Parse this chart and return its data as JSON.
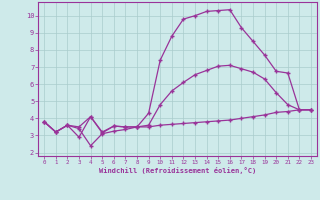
{
  "xlabel": "Windchill (Refroidissement éolien,°C)",
  "background_color": "#ceeaea",
  "grid_color": "#aacccc",
  "line_color": "#993399",
  "xlim": [
    -0.5,
    23.5
  ],
  "ylim": [
    1.8,
    10.8
  ],
  "xticks": [
    0,
    1,
    2,
    3,
    4,
    5,
    6,
    7,
    8,
    9,
    10,
    11,
    12,
    13,
    14,
    15,
    16,
    17,
    18,
    19,
    20,
    21,
    22,
    23
  ],
  "yticks": [
    2,
    3,
    4,
    5,
    6,
    7,
    8,
    9,
    10
  ],
  "curve1_x": [
    0,
    1,
    2,
    3,
    4,
    5,
    6,
    7,
    8,
    9,
    10,
    11,
    12,
    13,
    14,
    15,
    16,
    17,
    18,
    19,
    20,
    21,
    22,
    23
  ],
  "curve1_y": [
    3.8,
    3.2,
    3.6,
    2.9,
    4.1,
    3.15,
    3.55,
    3.5,
    3.5,
    4.3,
    7.4,
    8.8,
    9.8,
    10.0,
    10.25,
    10.3,
    10.35,
    9.3,
    8.5,
    7.7,
    6.75,
    6.65,
    4.5,
    4.5
  ],
  "curve2_x": [
    0,
    1,
    2,
    3,
    4,
    5,
    6,
    7,
    8,
    9,
    10,
    11,
    12,
    13,
    14,
    15,
    16,
    17,
    18,
    19,
    20,
    21,
    22,
    23
  ],
  "curve2_y": [
    3.8,
    3.2,
    3.6,
    3.5,
    4.1,
    3.2,
    3.55,
    3.5,
    3.5,
    3.6,
    4.8,
    5.6,
    6.1,
    6.55,
    6.8,
    7.05,
    7.1,
    6.9,
    6.7,
    6.3,
    5.5,
    4.8,
    4.5,
    4.5
  ],
  "curve3_x": [
    0,
    1,
    2,
    3,
    4,
    5,
    6,
    7,
    8,
    9,
    10,
    11,
    12,
    13,
    14,
    15,
    16,
    17,
    18,
    19,
    20,
    21,
    22,
    23
  ],
  "curve3_y": [
    3.8,
    3.2,
    3.6,
    3.4,
    2.4,
    3.1,
    3.25,
    3.35,
    3.5,
    3.5,
    3.6,
    3.65,
    3.7,
    3.75,
    3.8,
    3.85,
    3.9,
    4.0,
    4.1,
    4.2,
    4.35,
    4.4,
    4.5,
    4.5
  ]
}
